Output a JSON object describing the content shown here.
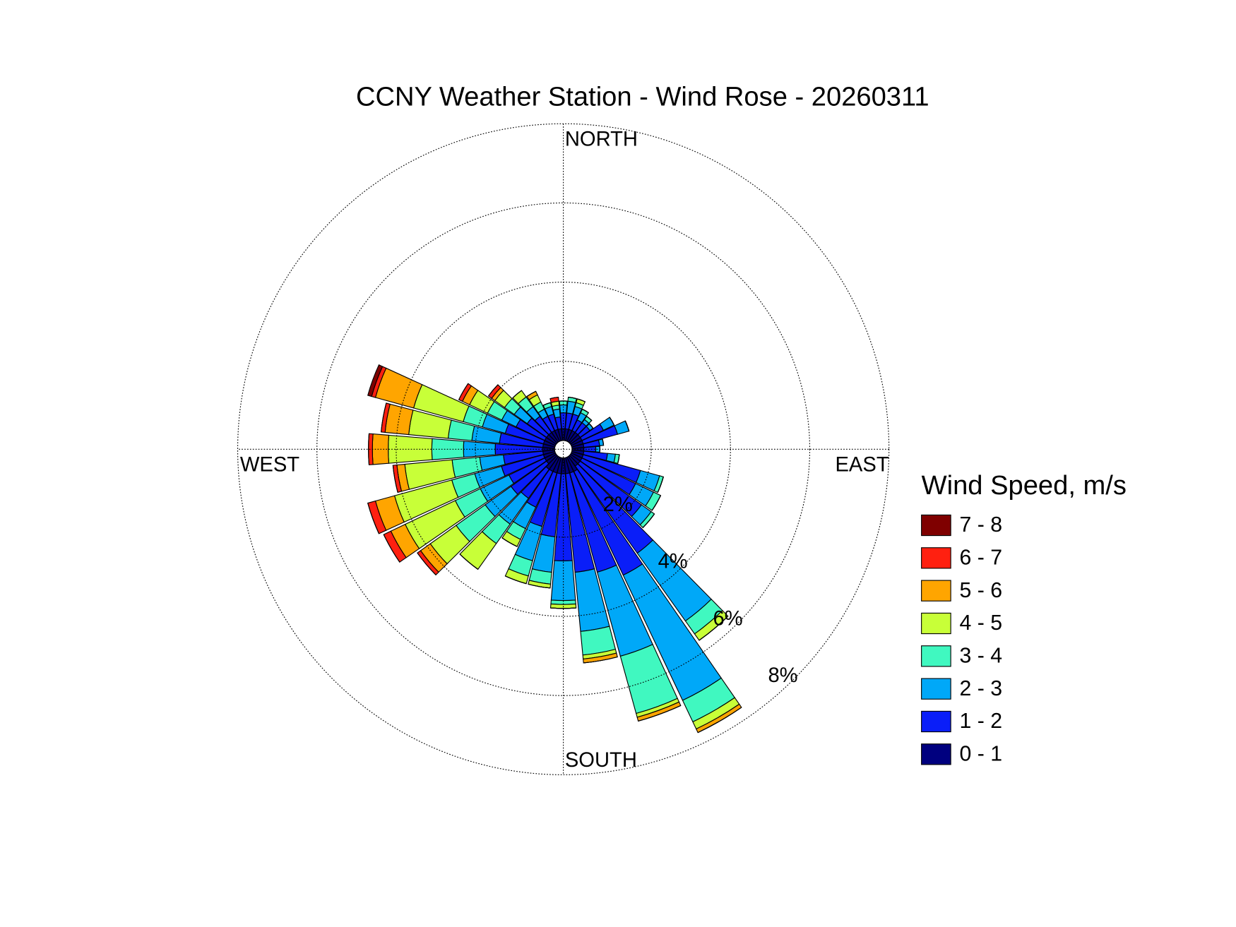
{
  "chart_data": {
    "type": "windrose",
    "title": "CCNY Weather Station - Wind Rose - 20260311",
    "direction_labels": [
      "NORTH",
      "EAST",
      "SOUTH",
      "WEST"
    ],
    "directions": [
      0,
      10,
      20,
      30,
      40,
      50,
      60,
      70,
      80,
      90,
      100,
      110,
      120,
      130,
      140,
      150,
      160,
      170,
      180,
      190,
      200,
      210,
      220,
      230,
      240,
      250,
      260,
      270,
      280,
      290,
      300,
      310,
      320,
      330,
      340,
      350
    ],
    "rlim": [
      0,
      8
    ],
    "rticks": [
      {
        "value": 2,
        "label": "2%"
      },
      {
        "value": 4,
        "label": "4%"
      },
      {
        "value": 6,
        "label": "6%"
      },
      {
        "value": 8,
        "label": "8%"
      }
    ],
    "grid": true,
    "legend_title": "Wind Speed, m/s",
    "legend_position": "right",
    "series": [
      {
        "name": "0 - 1",
        "color": "#00007f",
        "values": [
          0.3,
          0.3,
          0.3,
          0.3,
          0.3,
          0.3,
          0.3,
          0.3,
          0.3,
          0.3,
          0.3,
          0.3,
          0.3,
          0.3,
          0.3,
          0.4,
          0.4,
          0.4,
          0.4,
          0.4,
          0.4,
          0.4,
          0.4,
          0.3,
          0.3,
          0.3,
          0.3,
          0.3,
          0.3,
          0.3,
          0.3,
          0.3,
          0.3,
          0.3,
          0.3,
          0.3
        ]
      },
      {
        "name": "1 - 2",
        "color": "#0a1ef8",
        "values": [
          0.4,
          0.4,
          0.4,
          0.3,
          0.3,
          0.3,
          0.6,
          0.9,
          0.4,
          0.3,
          0.6,
          1.5,
          1.5,
          1.9,
          2.7,
          2.9,
          2.6,
          2.5,
          2.2,
          1.6,
          1.4,
          1.0,
          0.9,
          1.1,
          1.0,
          1.1,
          1.0,
          1.2,
          1.1,
          1.0,
          0.8,
          0.6,
          0.5,
          0.4,
          0.4,
          0.3
        ]
      },
      {
        "name": "2 - 3",
        "color": "#00a8f8",
        "values": [
          0.2,
          0.3,
          0.2,
          0.2,
          0.1,
          0.1,
          0.3,
          0.3,
          0.1,
          0.1,
          0.2,
          0.5,
          0.5,
          0.3,
          2.1,
          3.5,
          2.2,
          1.5,
          1.0,
          0.9,
          0.9,
          0.6,
          0.8,
          0.8,
          0.8,
          0.7,
          0.6,
          0.8,
          0.7,
          0.6,
          0.4,
          0.4,
          0.3,
          0.2,
          0.2,
          0.2
        ]
      },
      {
        "name": "3 - 4",
        "color": "#40f8c0",
        "values": [
          0.1,
          0.1,
          0.1,
          0.1,
          0.1,
          0,
          0,
          0,
          0,
          0,
          0.1,
          0.1,
          0.2,
          0.1,
          0.4,
          0.6,
          1.5,
          0.6,
          0.1,
          0.3,
          0.4,
          0.3,
          0.6,
          0.9,
          0.7,
          0.6,
          0.7,
          0.8,
          0.6,
          0.5,
          0.4,
          0.3,
          0.3,
          0.2,
          0.1,
          0.1
        ]
      },
      {
        "name": "4 - 5",
        "color": "#c8ff38",
        "values": [
          0,
          0,
          0.1,
          0,
          0,
          0,
          0,
          0,
          0,
          0,
          0,
          0,
          0,
          0,
          0.2,
          0.2,
          0.1,
          0.1,
          0.1,
          0.1,
          0.2,
          0.2,
          0.8,
          0.8,
          1.4,
          1.5,
          1.2,
          1.1,
          1.0,
          1.3,
          0.5,
          0.3,
          0.2,
          0.2,
          0,
          0.1
        ]
      },
      {
        "name": "5 - 6",
        "color": "#ffa500",
        "values": [
          0,
          0,
          0,
          0,
          0,
          0,
          0,
          0,
          0,
          0,
          0,
          0,
          0,
          0,
          0,
          0.1,
          0.1,
          0.1,
          0,
          0,
          0,
          0,
          0,
          0.3,
          0.4,
          0.5,
          0.2,
          0.4,
          0.6,
          1.0,
          0.2,
          0.1,
          0,
          0.1,
          0,
          0
        ]
      },
      {
        "name": "6 - 7",
        "color": "#ff2010",
        "values": [
          0,
          0,
          0,
          0,
          0,
          0,
          0,
          0,
          0,
          0,
          0,
          0,
          0,
          0,
          0,
          0,
          0,
          0,
          0,
          0,
          0,
          0,
          0,
          0.1,
          0.2,
          0.2,
          0.1,
          0.1,
          0.1,
          0.1,
          0.1,
          0.1,
          0,
          0,
          0,
          0.1
        ]
      },
      {
        "name": "7 - 8",
        "color": "#7f0000",
        "values": [
          0,
          0,
          0,
          0,
          0,
          0,
          0,
          0,
          0,
          0,
          0,
          0,
          0,
          0,
          0,
          0,
          0,
          0,
          0,
          0,
          0,
          0,
          0,
          0,
          0,
          0,
          0,
          0,
          0,
          0.1,
          0,
          0,
          0,
          0,
          0,
          0
        ]
      }
    ]
  }
}
